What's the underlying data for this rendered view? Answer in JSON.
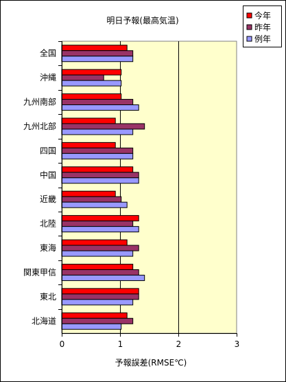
{
  "chart_data": {
    "type": "bar",
    "orientation": "horizontal",
    "title": "明日予報(最高気温)",
    "xlabel": "予報誤差(RMSE℃)",
    "ylabel": "",
    "xlim": [
      0,
      3
    ],
    "x_ticks": [
      "0",
      "1",
      "2",
      "3"
    ],
    "grid": "vertical",
    "legend_position": "top-right",
    "categories": [
      "全国",
      "沖縄",
      "九州南部",
      "九州北部",
      "四国",
      "中国",
      "近畿",
      "北陸",
      "東海",
      "関東甲信",
      "東北",
      "北海道"
    ],
    "series": [
      {
        "name": "今年",
        "color": "#FF0000",
        "values": [
          1.12,
          1.02,
          1.02,
          0.92,
          0.92,
          1.22,
          0.92,
          1.32,
          1.12,
          1.22,
          1.32,
          1.12
        ]
      },
      {
        "name": "昨年",
        "color": "#993366",
        "values": [
          1.22,
          0.72,
          1.22,
          1.42,
          1.22,
          1.32,
          1.02,
          1.22,
          1.32,
          1.32,
          1.32,
          1.22
        ]
      },
      {
        "name": "例年",
        "color": "#9999FF",
        "values": [
          1.22,
          1.02,
          1.32,
          1.22,
          1.22,
          1.32,
          1.12,
          1.32,
          1.22,
          1.42,
          1.22,
          1.02
        ]
      }
    ],
    "plot_background": "#FFFFCC"
  }
}
